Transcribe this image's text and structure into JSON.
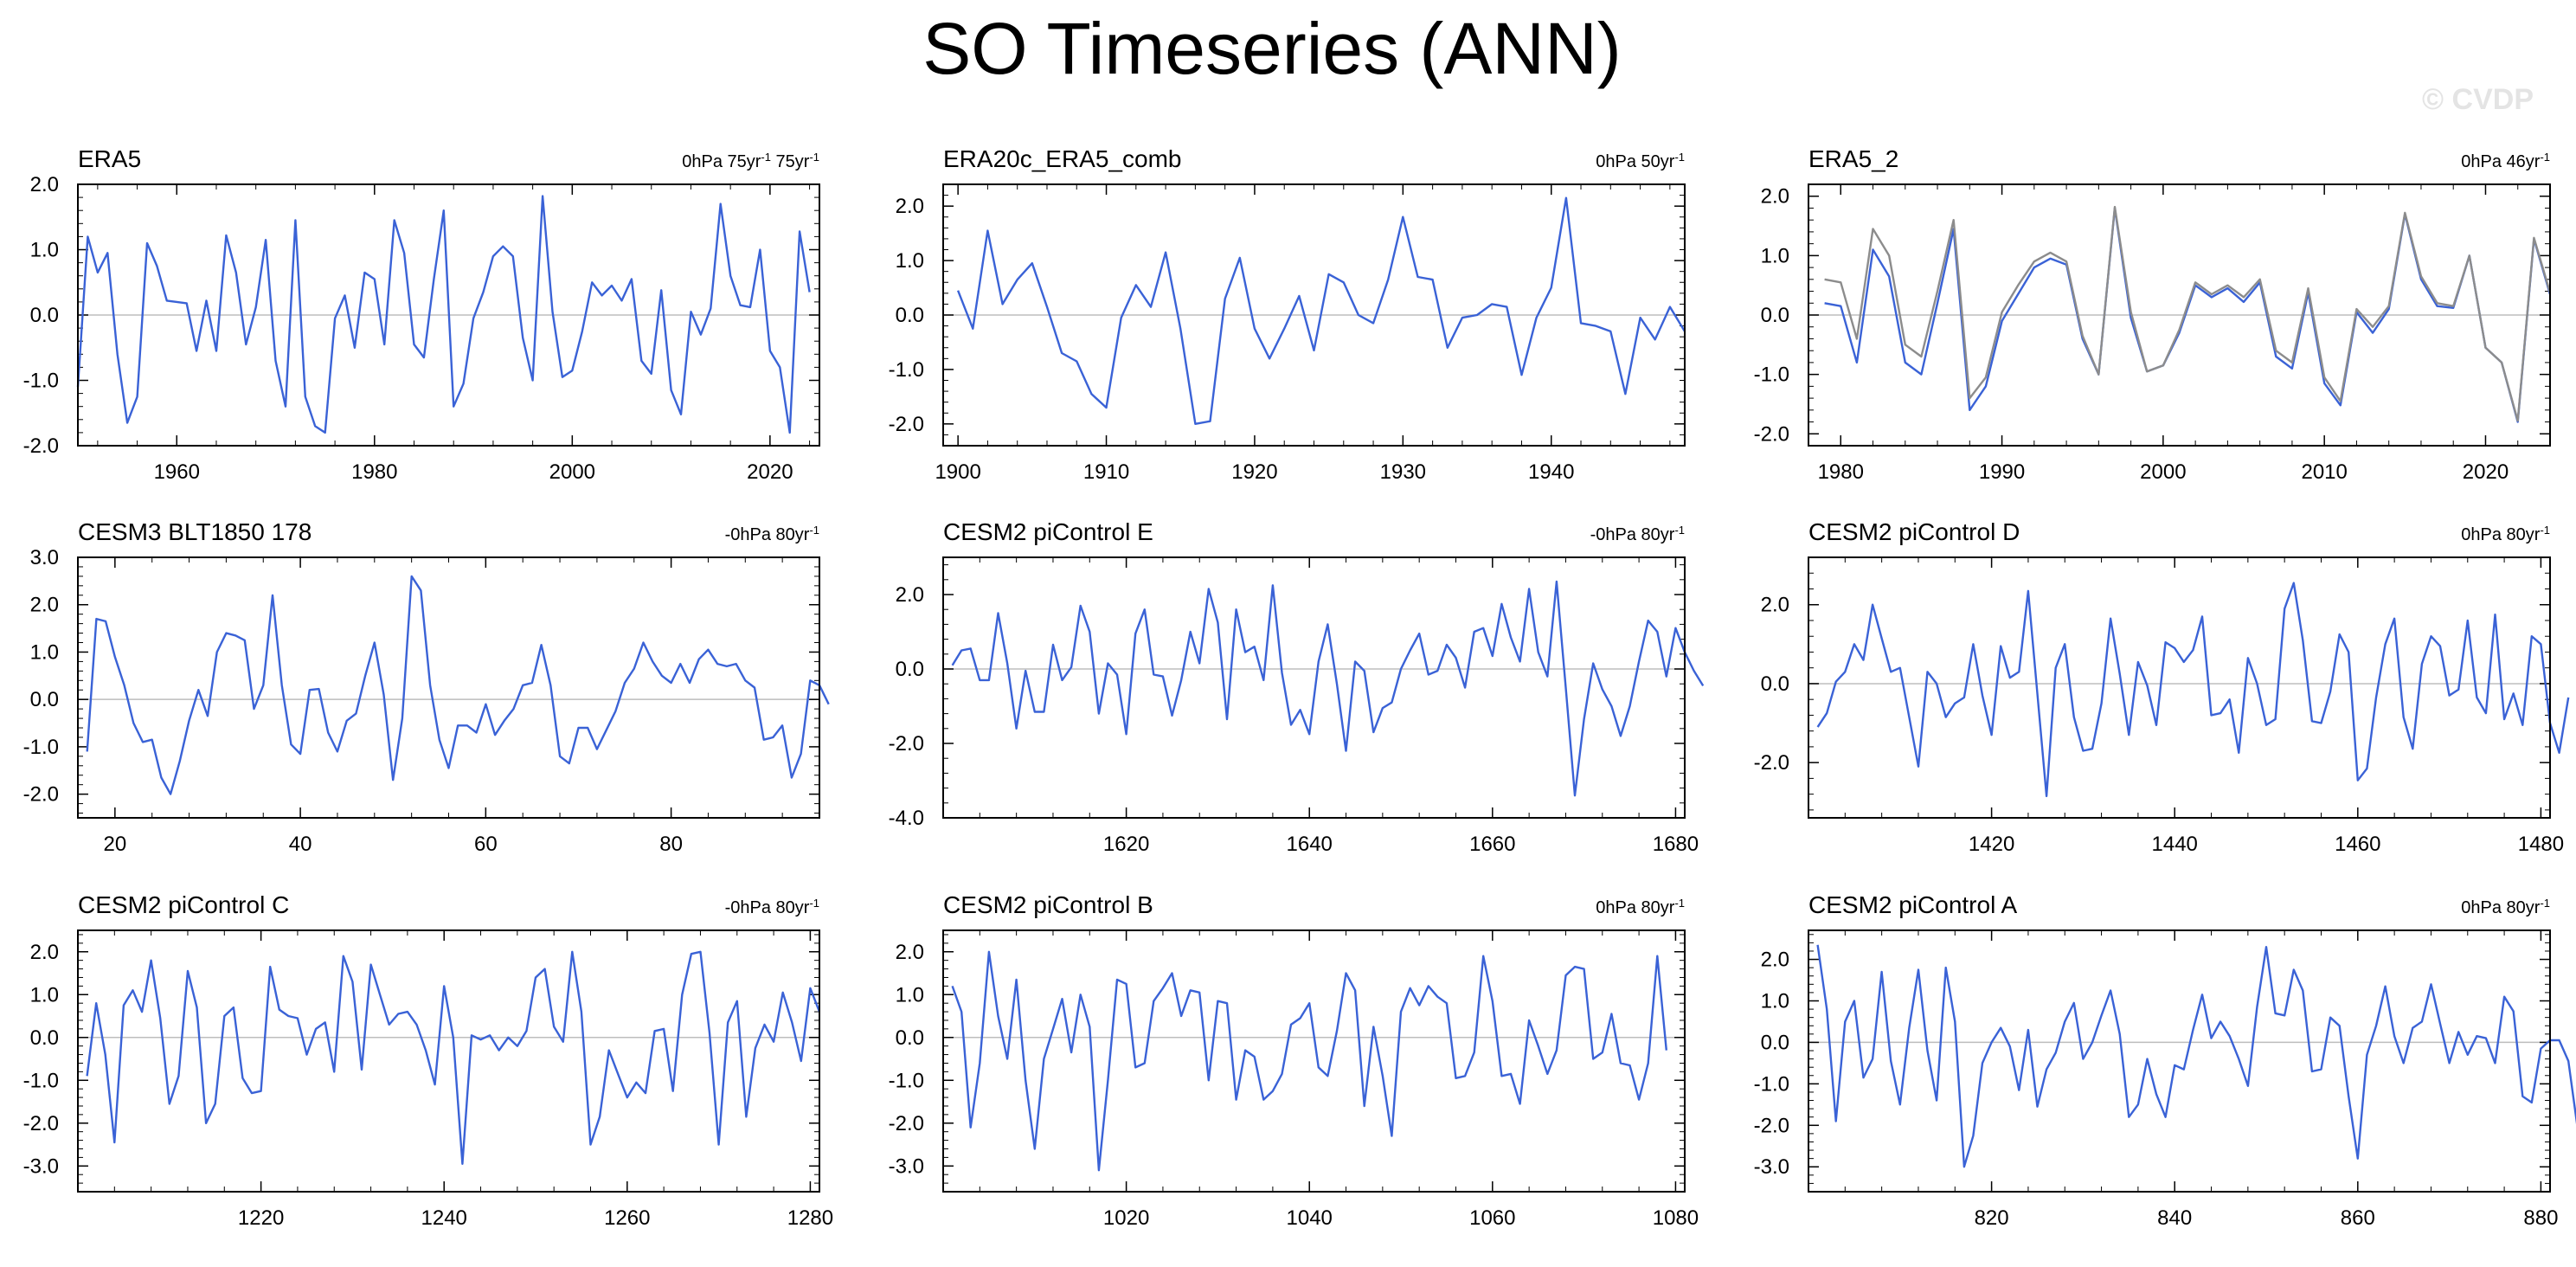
{
  "figure": {
    "title": "SO Timeseries (ANN)",
    "watermark": "© CVDP"
  },
  "colors": {
    "line": "#3a62d6",
    "line2": "#8c8c8c",
    "zero": "#bdbdbd",
    "axis": "#000000"
  },
  "chart_data": [
    {
      "type": "line",
      "title": "ERA5",
      "right_label": "0hPa 75yr",
      "right_sup": "-1",
      "right_label2": " 75yr",
      "right_sup2": "-1",
      "x_start": 1950,
      "xlim": [
        1950,
        2025
      ],
      "xticks": [
        1960,
        1980,
        2000,
        2020
      ],
      "ylim": [
        -2.0,
        2.0
      ],
      "yticks": [
        -2.0,
        -1.0,
        0.0,
        1.0,
        2.0
      ],
      "series": [
        {
          "values": [
            -1.1,
            1.2,
            0.65,
            0.95,
            -0.6,
            -1.65,
            -1.25,
            1.1,
            0.75,
            0.22,
            0.2,
            0.18,
            -0.55,
            0.22,
            -0.55,
            1.22,
            0.65,
            -0.45,
            0.12,
            1.15,
            -0.7,
            -1.4,
            1.45,
            -1.25,
            -1.7,
            -1.8,
            -0.05,
            0.3,
            -0.5,
            0.65,
            0.55,
            -0.45,
            1.45,
            0.95,
            -0.45,
            -0.65,
            0.55,
            1.6,
            -1.4,
            -1.05,
            -0.05,
            0.35,
            0.9,
            1.05,
            0.9,
            -0.35,
            -1.0,
            1.82,
            0.05,
            -0.95,
            -0.85,
            -0.25,
            0.5,
            0.3,
            0.45,
            0.22,
            0.55,
            -0.7,
            -0.9,
            0.38,
            -1.15,
            -1.52,
            0.05,
            -0.3,
            0.1,
            1.7,
            0.6,
            0.15,
            0.12,
            1.0,
            -0.55,
            -0.8,
            -1.8,
            1.28,
            0.35
          ]
        }
      ]
    },
    {
      "type": "line",
      "title": "ERA20c_ERA5_comb",
      "right_label": "0hPa 50yr",
      "right_sup": "-1",
      "x_start": 1900,
      "xlim": [
        1899,
        1949
      ],
      "xticks": [
        1900,
        1910,
        1920,
        1930,
        1940
      ],
      "ylim": [
        -2.4,
        2.4
      ],
      "yticks": [
        -2.0,
        -1.0,
        0.0,
        1.0,
        2.0
      ],
      "series": [
        {
          "values": [
            0.45,
            -0.25,
            1.55,
            0.2,
            0.65,
            0.95,
            0.15,
            -0.7,
            -0.85,
            -1.45,
            -1.7,
            -0.05,
            0.55,
            0.15,
            1.15,
            -0.25,
            -2.0,
            -1.95,
            0.3,
            1.05,
            -0.25,
            -0.8,
            -0.25,
            0.35,
            -0.65,
            0.75,
            0.6,
            0.0,
            -0.15,
            0.65,
            1.8,
            0.7,
            0.65,
            -0.6,
            -0.05,
            0.0,
            0.2,
            0.15,
            -1.1,
            -0.05,
            0.5,
            2.15,
            -0.15,
            -0.2,
            -0.3,
            -1.45,
            -0.05,
            -0.45,
            0.15,
            -0.3
          ]
        }
      ]
    },
    {
      "type": "line",
      "title": "ERA5_2",
      "right_label": "0hPa 46yr",
      "right_sup": "-1",
      "x_start": 1979,
      "xlim": [
        1978,
        2024
      ],
      "xticks": [
        1980,
        1990,
        2000,
        2010,
        2020
      ],
      "ylim": [
        -2.2,
        2.2
      ],
      "yticks": [
        -2.0,
        -1.0,
        0.0,
        1.0,
        2.0
      ],
      "series": [
        {
          "values": [
            0.2,
            0.15,
            -0.8,
            1.1,
            0.65,
            -0.8,
            -1.0,
            0.2,
            1.45,
            -1.6,
            -1.2,
            -0.1,
            0.35,
            0.8,
            0.95,
            0.85,
            -0.4,
            -1.0,
            1.8,
            -0.05,
            -0.95,
            -0.85,
            -0.3,
            0.5,
            0.3,
            0.45,
            0.22,
            0.55,
            -0.7,
            -0.9,
            0.38,
            -1.15,
            -1.52,
            0.05,
            -0.3,
            0.1,
            1.7,
            0.6,
            0.15,
            0.12,
            1.0,
            -0.55,
            -0.8,
            -1.8,
            1.28,
            0.35
          ]
        },
        {
          "values": [
            0.6,
            0.55,
            -0.4,
            1.45,
            1.0,
            -0.5,
            -0.7,
            0.4,
            1.6,
            -1.4,
            -1.05,
            0.05,
            0.5,
            0.9,
            1.05,
            0.9,
            -0.35,
            -1.0,
            1.82,
            0.05,
            -0.95,
            -0.85,
            -0.25,
            0.55,
            0.35,
            0.5,
            0.3,
            0.6,
            -0.6,
            -0.8,
            0.45,
            -1.05,
            -1.45,
            0.1,
            -0.2,
            0.15,
            1.72,
            0.65,
            0.2,
            0.15,
            1.0,
            -0.55,
            -0.8,
            -1.78,
            1.3,
            0.38
          ]
        }
      ]
    },
    {
      "type": "line",
      "title": "CESM3 BLT1850 178",
      "right_label": "-0hPa 80yr",
      "right_sup": "-1",
      "x_start": 17,
      "xlim": [
        16,
        96
      ],
      "xticks": [
        20,
        40,
        60,
        80
      ],
      "ylim": [
        -2.5,
        3.0
      ],
      "yticks": [
        -2.0,
        -1.0,
        0.0,
        1.0,
        2.0,
        3.0
      ],
      "series": [
        {
          "values": [
            -1.1,
            1.7,
            1.65,
            0.9,
            0.3,
            -0.5,
            -0.9,
            -0.85,
            -1.65,
            -2.0,
            -1.3,
            -0.45,
            0.2,
            -0.35,
            1.0,
            1.4,
            1.35,
            1.25,
            -0.2,
            0.3,
            2.2,
            0.3,
            -0.95,
            -1.15,
            0.2,
            0.22,
            -0.7,
            -1.1,
            -0.45,
            -0.3,
            0.5,
            1.2,
            0.1,
            -1.7,
            -0.4,
            2.6,
            2.3,
            0.3,
            -0.85,
            -1.45,
            -0.55,
            -0.55,
            -0.7,
            -0.1,
            -0.75,
            -0.45,
            -0.2,
            0.3,
            0.35,
            1.15,
            0.3,
            -1.2,
            -1.35,
            -0.6,
            -0.6,
            -1.05,
            -0.65,
            -0.25,
            0.35,
            0.65,
            1.2,
            0.8,
            0.5,
            0.35,
            0.75,
            0.35,
            0.85,
            1.05,
            0.75,
            0.7,
            0.75,
            0.4,
            0.25,
            -0.85,
            -0.8,
            -0.55,
            -1.65,
            -1.15,
            0.4,
            0.3,
            -0.1
          ]
        }
      ]
    },
    {
      "type": "line",
      "title": "CESM2 piControl E",
      "right_label": "-0hPa 80yr",
      "right_sup": "-1",
      "x_start": 1601,
      "xlim": [
        1600,
        1681
      ],
      "xticks": [
        1620,
        1640,
        1660,
        1680
      ],
      "ylim": [
        -4.0,
        3.0
      ],
      "yticks": [
        -4.0,
        -2.0,
        0.0,
        2.0
      ],
      "series": [
        {
          "values": [
            0.1,
            0.5,
            0.55,
            -0.3,
            -0.3,
            1.5,
            0.15,
            -1.6,
            -0.05,
            -1.15,
            -1.15,
            0.65,
            -0.3,
            0.05,
            1.7,
            1.0,
            -1.2,
            0.15,
            -0.15,
            -1.75,
            0.95,
            1.6,
            -0.15,
            -0.2,
            -1.25,
            -0.3,
            1.0,
            0.15,
            2.15,
            1.25,
            -1.35,
            1.6,
            0.45,
            0.6,
            -0.3,
            2.25,
            -0.1,
            -1.5,
            -1.1,
            -1.75,
            0.2,
            1.2,
            -0.4,
            -2.2,
            0.2,
            -0.05,
            -1.7,
            -1.05,
            -0.9,
            0.0,
            0.5,
            0.95,
            -0.15,
            -0.05,
            0.65,
            0.3,
            -0.5,
            1.0,
            1.1,
            0.35,
            1.75,
            0.85,
            0.2,
            2.15,
            0.45,
            -0.2,
            2.35,
            -0.5,
            -3.4,
            -1.35,
            0.15,
            -0.55,
            -1.0,
            -1.8,
            -1.0,
            0.2,
            1.3,
            1.0,
            -0.2,
            1.1,
            0.45,
            -0.05,
            -0.45
          ]
        }
      ]
    },
    {
      "type": "line",
      "title": "CESM2 piControl D",
      "right_label": "0hPa 80yr",
      "right_sup": "-1",
      "x_start": 1401,
      "xlim": [
        1400,
        1481
      ],
      "xticks": [
        1420,
        1440,
        1460,
        1480
      ],
      "ylim": [
        -3.4,
        3.2
      ],
      "yticks": [
        -2.0,
        0.0,
        2.0
      ],
      "series": [
        {
          "values": [
            -1.1,
            -0.75,
            0.05,
            0.3,
            1.0,
            0.6,
            2.0,
            1.15,
            0.3,
            0.4,
            -0.85,
            -2.1,
            0.3,
            0.0,
            -0.85,
            -0.5,
            -0.35,
            1.0,
            -0.3,
            -1.3,
            0.95,
            0.15,
            0.3,
            2.35,
            -0.25,
            -2.85,
            0.4,
            1.0,
            -0.85,
            -1.7,
            -1.65,
            -0.5,
            1.65,
            0.25,
            -1.3,
            0.55,
            -0.05,
            -1.05,
            1.05,
            0.9,
            0.55,
            0.85,
            1.7,
            -0.8,
            -0.75,
            -0.4,
            -1.75,
            0.65,
            0.0,
            -1.05,
            -0.9,
            1.9,
            2.55,
            1.1,
            -0.95,
            -1.0,
            -0.2,
            1.25,
            0.8,
            -2.45,
            -2.15,
            -0.35,
            1.0,
            1.65,
            -0.85,
            -1.65,
            0.5,
            1.2,
            0.95,
            -0.3,
            -0.15,
            1.6,
            -0.35,
            -0.75,
            1.75,
            -0.9,
            -0.25,
            -1.05,
            1.2,
            1.0,
            -1.0,
            -1.75,
            -0.35
          ]
        }
      ]
    },
    {
      "type": "line",
      "title": "CESM2 piControl C",
      "right_label": "-0hPa 80yr",
      "right_sup": "-1",
      "x_start": 1201,
      "xlim": [
        1200,
        1281
      ],
      "xticks": [
        1220,
        1240,
        1260,
        1280
      ],
      "ylim": [
        -3.6,
        2.5
      ],
      "yticks": [
        -3.0,
        -2.0,
        -1.0,
        0.0,
        1.0,
        2.0
      ],
      "series": [
        {
          "values": [
            -0.9,
            0.8,
            -0.4,
            -2.45,
            0.75,
            1.1,
            0.6,
            1.8,
            0.45,
            -1.55,
            -0.9,
            1.55,
            0.7,
            -2.0,
            -1.55,
            0.5,
            0.7,
            -0.95,
            -1.3,
            -1.25,
            1.65,
            0.65,
            0.5,
            0.45,
            -0.4,
            0.2,
            0.35,
            -0.8,
            1.9,
            1.3,
            -0.75,
            1.7,
            1.0,
            0.3,
            0.55,
            0.6,
            0.3,
            -0.3,
            -1.1,
            1.2,
            0.0,
            -2.95,
            0.05,
            -0.05,
            0.05,
            -0.3,
            0.0,
            -0.2,
            0.15,
            1.4,
            1.6,
            0.25,
            -0.1,
            2.0,
            0.6,
            -2.5,
            -1.85,
            -0.3,
            -0.85,
            -1.4,
            -1.05,
            -1.3,
            0.15,
            0.2,
            -1.25,
            1.0,
            1.95,
            2.0,
            0.1,
            -2.5,
            0.35,
            0.85,
            -1.85,
            -0.25,
            0.3,
            -0.1,
            1.05,
            0.35,
            -0.55,
            1.15,
            0.6
          ]
        }
      ]
    },
    {
      "type": "line",
      "title": "CESM2 piControl B",
      "right_label": "0hPa 80yr",
      "right_sup": "-1",
      "x_start": 1001,
      "xlim": [
        1000,
        1081
      ],
      "xticks": [
        1020,
        1040,
        1060,
        1080
      ],
      "ylim": [
        -3.6,
        2.5
      ],
      "yticks": [
        -3.0,
        -2.0,
        -1.0,
        0.0,
        1.0,
        2.0
      ],
      "series": [
        {
          "values": [
            1.2,
            0.6,
            -2.1,
            -0.6,
            2.0,
            0.5,
            -0.5,
            1.35,
            -1.0,
            -2.6,
            -0.5,
            0.2,
            0.9,
            -0.35,
            1.0,
            0.25,
            -3.1,
            -1.0,
            1.35,
            1.25,
            -0.7,
            -0.6,
            0.85,
            1.15,
            1.5,
            0.5,
            1.1,
            1.05,
            -1.0,
            0.85,
            0.8,
            -1.45,
            -0.3,
            -0.45,
            -1.45,
            -1.25,
            -0.85,
            0.3,
            0.45,
            0.8,
            -0.7,
            -0.9,
            0.15,
            1.5,
            1.1,
            -1.6,
            0.25,
            -0.9,
            -2.3,
            0.6,
            1.15,
            0.75,
            1.2,
            0.95,
            0.8,
            -0.95,
            -0.9,
            -0.35,
            1.9,
            0.85,
            -0.9,
            -0.85,
            -1.55,
            0.4,
            -0.2,
            -0.85,
            -0.3,
            1.45,
            1.65,
            1.6,
            -0.5,
            -0.35,
            0.55,
            -0.6,
            -0.65,
            -1.45,
            -0.6,
            1.9,
            -0.3
          ]
        }
      ]
    },
    {
      "type": "line",
      "title": "CESM2 piControl A",
      "right_label": "0hPa 80yr",
      "right_sup": "-1",
      "x_start": 801,
      "xlim": [
        800,
        881
      ],
      "xticks": [
        820,
        840,
        860,
        880
      ],
      "ylim": [
        -3.6,
        2.7
      ],
      "yticks": [
        -3.0,
        -2.0,
        -1.0,
        0.0,
        1.0,
        2.0
      ],
      "series": [
        {
          "values": [
            2.35,
            0.8,
            -1.9,
            0.5,
            1.0,
            -0.85,
            -0.4,
            1.7,
            -0.45,
            -1.5,
            0.35,
            1.75,
            -0.2,
            -1.4,
            1.8,
            0.5,
            -3.0,
            -2.25,
            -0.5,
            0.0,
            0.35,
            -0.1,
            -1.15,
            0.3,
            -1.55,
            -0.65,
            -0.25,
            0.5,
            0.95,
            -0.4,
            0.0,
            0.65,
            1.25,
            0.2,
            -1.8,
            -1.5,
            -0.4,
            -1.25,
            -1.8,
            -0.55,
            -0.65,
            0.3,
            1.15,
            0.1,
            0.5,
            0.15,
            -0.4,
            -1.05,
            0.85,
            2.3,
            0.7,
            0.65,
            1.75,
            1.25,
            -0.7,
            -0.65,
            0.6,
            0.4,
            -1.3,
            -2.8,
            -0.3,
            0.4,
            1.35,
            0.15,
            -0.5,
            0.35,
            0.5,
            1.4,
            0.45,
            -0.5,
            0.25,
            -0.3,
            0.15,
            0.1,
            -0.5,
            1.1,
            0.75,
            -1.3,
            -1.45,
            -0.15,
            0.05,
            0.05,
            -0.45,
            -2.05,
            1.35
          ]
        }
      ]
    }
  ]
}
